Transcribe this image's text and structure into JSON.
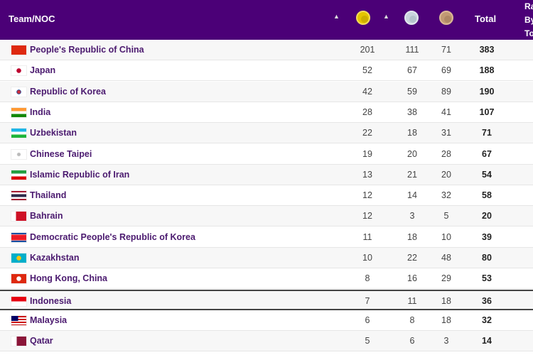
{
  "header": {
    "team_label": "Team/NOC",
    "total_label": "Total",
    "rank_label": "Rank By Total",
    "medal_icons": [
      "gold-medal-icon",
      "silver-medal-icon",
      "bronze-medal-icon"
    ]
  },
  "rows": [
    {
      "name": "People's Republic of China",
      "gold": 201,
      "silver": 111,
      "bronze": 71,
      "total": 383
    },
    {
      "name": "Japan",
      "gold": 52,
      "silver": 67,
      "bronze": 69,
      "total": 188
    },
    {
      "name": "Republic of Korea",
      "gold": 42,
      "silver": 59,
      "bronze": 89,
      "total": 190
    },
    {
      "name": "India",
      "gold": 28,
      "silver": 38,
      "bronze": 41,
      "total": 107
    },
    {
      "name": "Uzbekistan",
      "gold": 22,
      "silver": 18,
      "bronze": 31,
      "total": 71
    },
    {
      "name": "Chinese Taipei",
      "gold": 19,
      "silver": 20,
      "bronze": 28,
      "total": 67
    },
    {
      "name": "Islamic Republic of Iran",
      "gold": 13,
      "silver": 21,
      "bronze": 20,
      "total": 54
    },
    {
      "name": "Thailand",
      "gold": 12,
      "silver": 14,
      "bronze": 32,
      "total": 58
    },
    {
      "name": "Bahrain",
      "gold": 12,
      "silver": 3,
      "bronze": 5,
      "total": 20
    },
    {
      "name": "Democratic People's Republic of Korea",
      "gold": 11,
      "silver": 18,
      "bronze": 10,
      "total": 39
    },
    {
      "name": "Kazakhstan",
      "gold": 10,
      "silver": 22,
      "bronze": 48,
      "total": 80
    },
    {
      "name": "Hong Kong, China",
      "gold": 8,
      "silver": 16,
      "bronze": 29,
      "total": 53
    },
    {
      "name": "Indonesia",
      "gold": 7,
      "silver": 11,
      "bronze": 18,
      "total": 36,
      "highlighted": true
    },
    {
      "name": "Malaysia",
      "gold": 6,
      "silver": 8,
      "bronze": 18,
      "total": 32
    },
    {
      "name": "Qatar",
      "gold": 5,
      "silver": 6,
      "bronze": 3,
      "total": 14
    }
  ]
}
